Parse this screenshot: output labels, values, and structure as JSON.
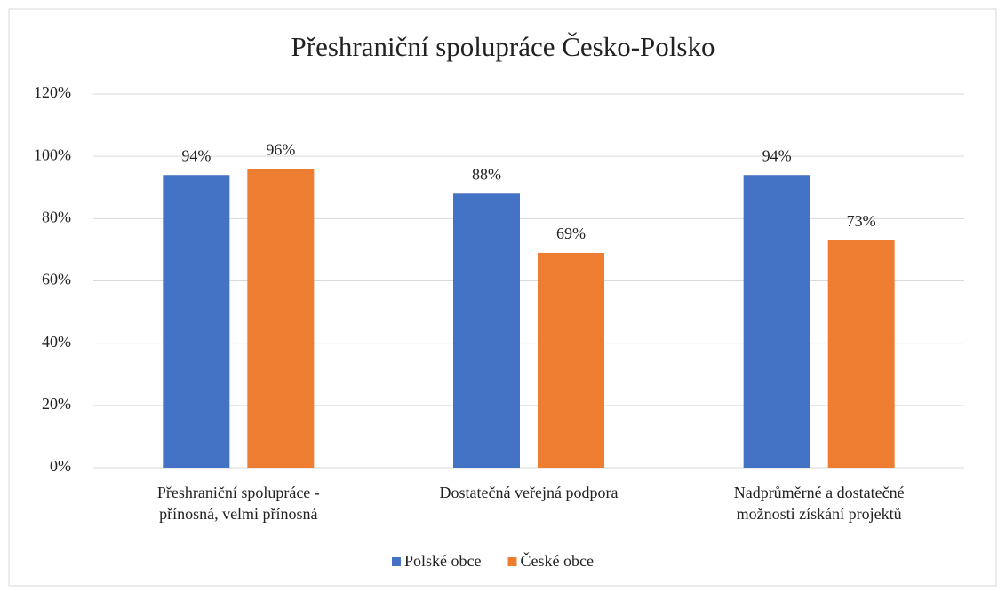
{
  "chart_data": {
    "type": "bar",
    "title": "Přeshraniční spolupráce Česko-Polsko",
    "categories": [
      [
        "Přeshraniční spolupráce -",
        "přínosná, velmi přínosná"
      ],
      [
        "Dostatečná veřejná podpora"
      ],
      [
        "Nadprůměrné a dostatečné",
        "možnosti získání projektů"
      ]
    ],
    "series": [
      {
        "name": "Polské obce",
        "color": "#4472c4",
        "values": [
          94,
          88,
          94
        ],
        "value_labels": [
          "94%",
          "88%",
          "94%"
        ]
      },
      {
        "name": "České obce",
        "color": "#ed7d31",
        "values": [
          96,
          69,
          73
        ],
        "value_labels": [
          "96%",
          "69%",
          "73%"
        ]
      }
    ],
    "ylim": [
      0,
      120
    ],
    "yticks": [
      {
        "value": 0,
        "label": "0%"
      },
      {
        "value": 20,
        "label": "20%"
      },
      {
        "value": 40,
        "label": "40%"
      },
      {
        "value": 60,
        "label": "60%"
      },
      {
        "value": 80,
        "label": "80%"
      },
      {
        "value": 100,
        "label": "100%"
      },
      {
        "value": 120,
        "label": "120%"
      }
    ],
    "grid": true,
    "legend": "bottom"
  }
}
